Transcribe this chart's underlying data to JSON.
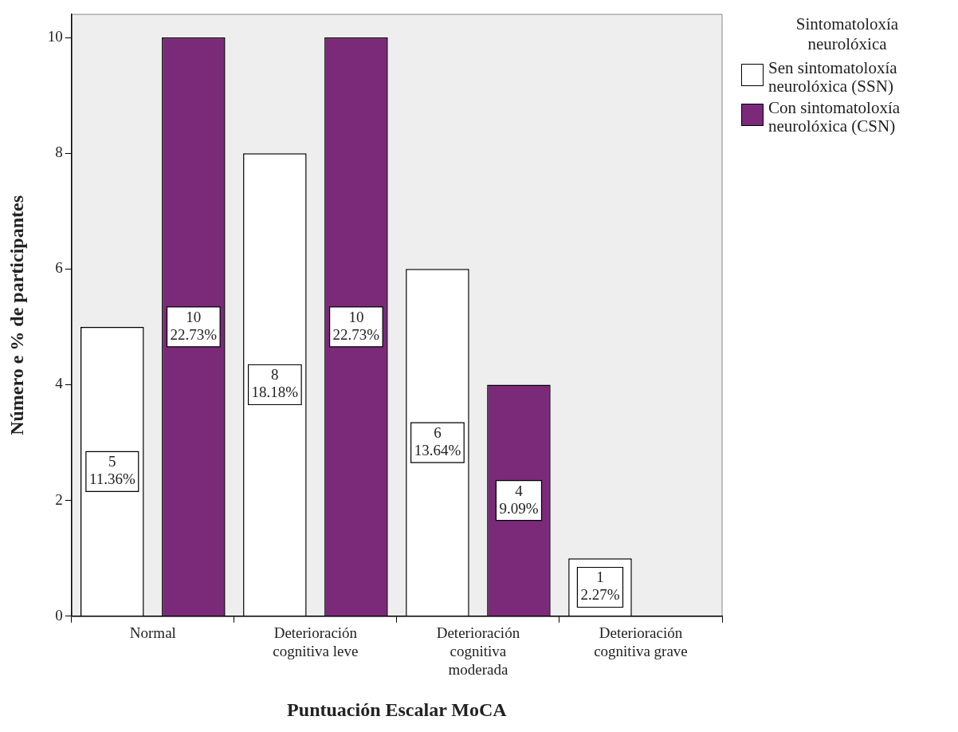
{
  "chart_data": {
    "type": "bar",
    "xlabel": "Puntuación Escalar MoCA",
    "ylabel": "Número e % de participantes",
    "legend_title": "Sintomatoloxía\nneurolóxica",
    "categories": [
      "Normal",
      "Deterioración\ncognitiva leve",
      "Deterioración\ncognitiva\nmoderada",
      "Deterioración\ncognitiva grave"
    ],
    "series": [
      {
        "name": "Sen sintomatoloxía\nneurolóxica (SSN)",
        "color": "#ffffff",
        "values": [
          5,
          8,
          6,
          1
        ],
        "value_labels": [
          "5\n11.36%",
          "8\n18.18%",
          "6\n13.64%",
          "1\n2.27%"
        ]
      },
      {
        "name": "Con sintomatoloxía\nneurolóxica (CSN)",
        "color": "#7b2a7a",
        "values": [
          10,
          10,
          4,
          0
        ],
        "value_labels": [
          "10\n22.73%",
          "10\n22.73%",
          "4\n9.09%",
          null
        ]
      }
    ],
    "ylim": [
      0,
      10.4
    ],
    "yticks": [
      0,
      2,
      4,
      6,
      8,
      10
    ],
    "grid": false,
    "legend": "top right"
  }
}
